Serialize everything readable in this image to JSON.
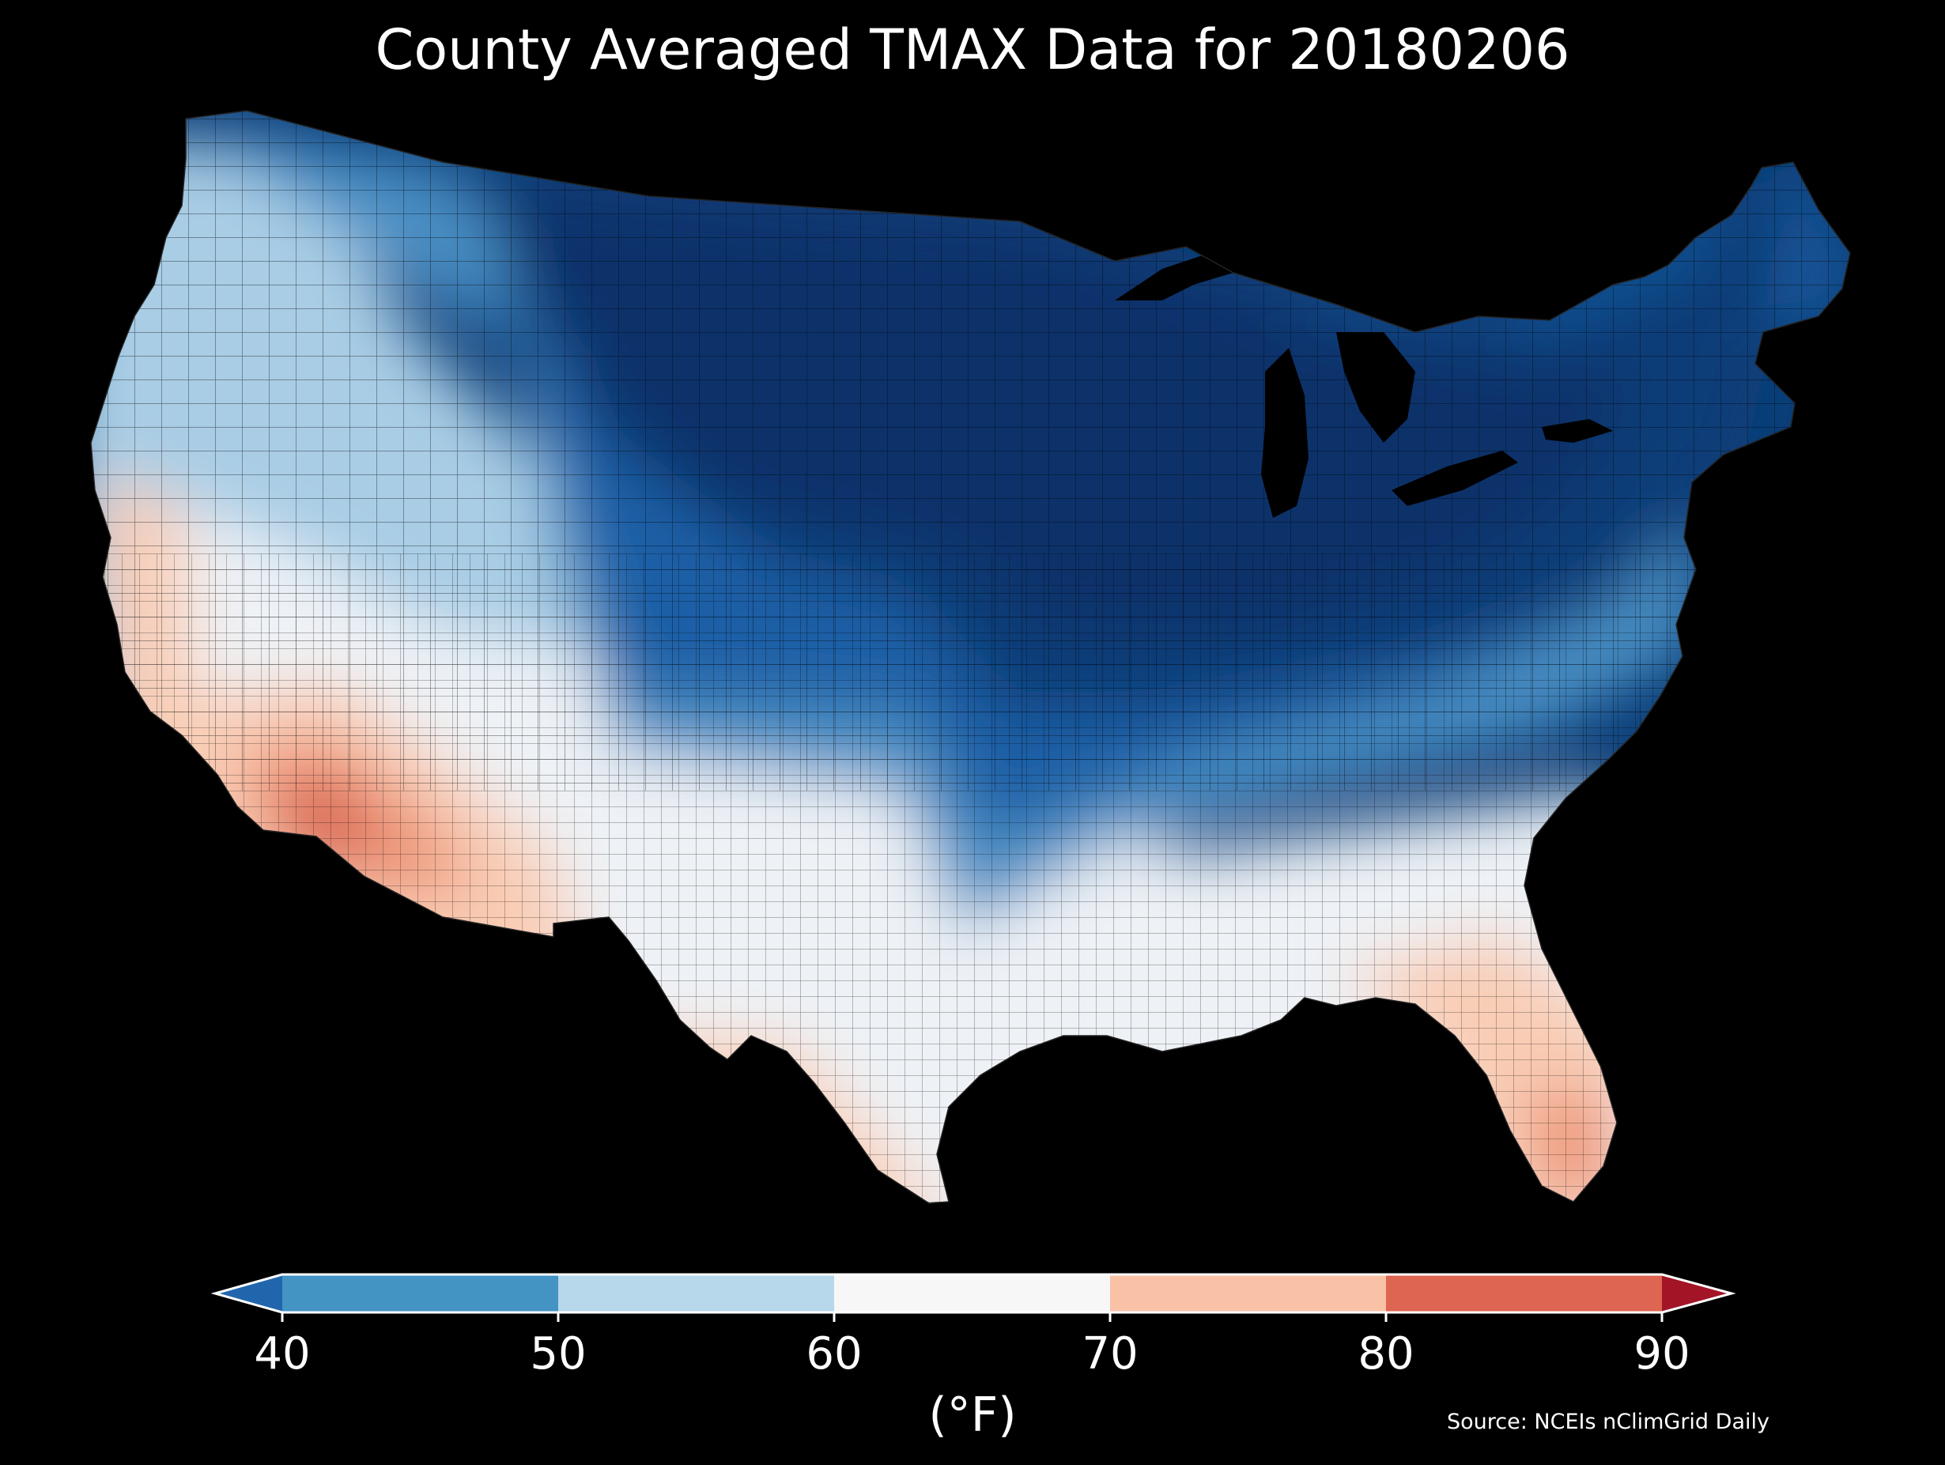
{
  "title": "County Averaged TMAX Data for 20180206",
  "colorbar": {
    "units_label": "(°F)",
    "ticks": [
      "40",
      "50",
      "60",
      "70",
      "80",
      "90"
    ],
    "bins": [
      {
        "range": "<40",
        "color": "#2166ac"
      },
      {
        "range": "40-50",
        "color": "#4393c3"
      },
      {
        "range": "50-60",
        "color": "#b7d7ea"
      },
      {
        "range": "60-70",
        "color": "#f7f7f7"
      },
      {
        "range": "70-80",
        "color": "#f9c2a7"
      },
      {
        "range": "80-90",
        "color": "#dd6551"
      },
      {
        "range": ">90",
        "color": "#a21426"
      }
    ]
  },
  "source": "Source: NCEIs nClimGrid Daily",
  "map": {
    "region": "Contiguous United States",
    "variable": "TMAX",
    "unit_level": "county",
    "palette": {
      "coldest": "#08306b",
      "very_cold": "#0b3e78",
      "cold": "#1f5fa6",
      "cool": "#4a8fc4",
      "mild": "#a9cde5",
      "neutral": "#eef2f6",
      "warm": "#f9cdb5",
      "hot": "#ee9a7d",
      "hottest": "#d7604d"
    }
  }
}
